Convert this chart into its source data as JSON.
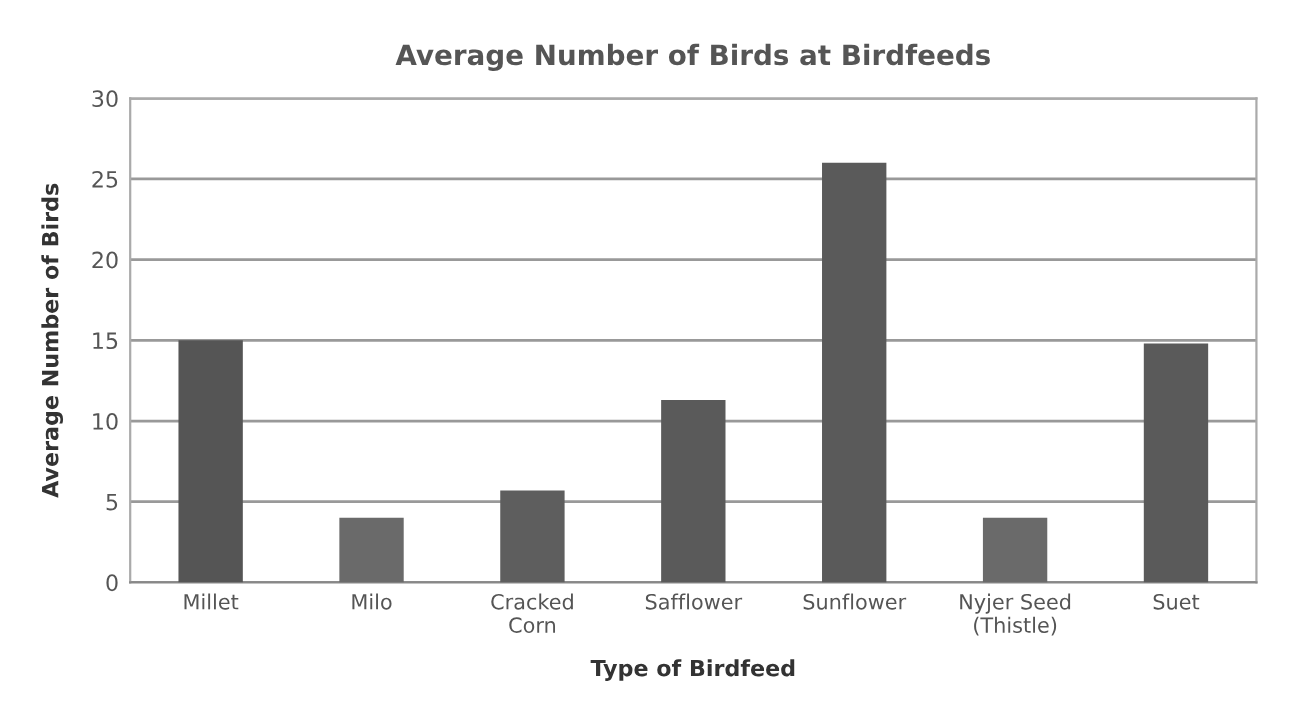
{
  "chart_data": {
    "type": "bar",
    "title": "Average Number of Birds at Birdfeeds",
    "xlabel": "Type of Birdfeed",
    "ylabel": "Average Number of Birds",
    "categories": [
      "Millet",
      "Milo",
      "Cracked\nCorn",
      "Safflower",
      "Sunflower",
      "Nyjer Seed\n(Thistle)",
      "Suet"
    ],
    "values": [
      15,
      4,
      5.7,
      11.3,
      26,
      4,
      14.8
    ],
    "colors": [
      "#555555",
      "#6a6a6a",
      "#5e5e5e",
      "#5a5a5a",
      "#5a5a5a",
      "#6a6a6a",
      "#5a5a5a"
    ],
    "ylim": [
      0,
      30
    ],
    "yticks": [
      0,
      5,
      10,
      15,
      20,
      25,
      30
    ],
    "grid": "y",
    "legend": false
  }
}
